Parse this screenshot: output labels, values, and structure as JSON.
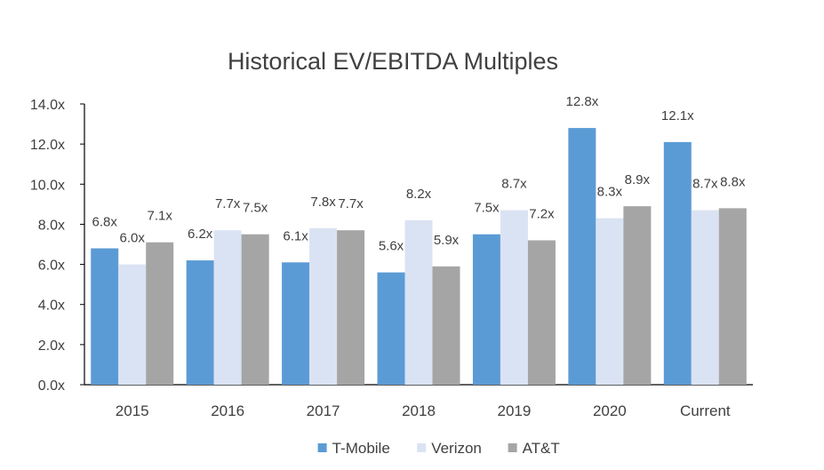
{
  "chart_data": {
    "type": "bar",
    "title": "Historical EV/EBITDA Multiples",
    "xlabel": "",
    "ylabel": "",
    "categories": [
      "2015",
      "2016",
      "2017",
      "2018",
      "2019",
      "2020",
      "Current"
    ],
    "ylim": [
      0,
      14
    ],
    "yticks": [
      "0.0x",
      "2.0x",
      "4.0x",
      "6.0x",
      "8.0x",
      "10.0x",
      "12.0x",
      "14.0x"
    ],
    "ytick_values": [
      0,
      2,
      4,
      6,
      8,
      10,
      12,
      14
    ],
    "grid": false,
    "legend_position": "bottom",
    "series": [
      {
        "name": "T-Mobile",
        "color": "#5b9bd5",
        "values": [
          6.8,
          6.2,
          6.1,
          5.6,
          7.5,
          12.8,
          12.1
        ],
        "labels": [
          "6.8x",
          "6.2x",
          "6.1x",
          "5.6x",
          "7.5x",
          "12.8x",
          "12.1x"
        ]
      },
      {
        "name": "Verizon",
        "color": "#dae3f3",
        "values": [
          6.0,
          7.7,
          7.8,
          8.2,
          8.7,
          8.3,
          8.7
        ],
        "labels": [
          "6.0x",
          "7.7x",
          "7.8x",
          "8.2x",
          "8.7x",
          "8.3x",
          "8.7x"
        ]
      },
      {
        "name": "AT&T",
        "color": "#a5a5a5",
        "values": [
          7.1,
          7.5,
          7.7,
          5.9,
          7.2,
          8.9,
          8.8
        ],
        "labels": [
          "7.1x",
          "7.5x",
          "7.7x",
          "5.9x",
          "7.2x",
          "8.9x",
          "8.8x"
        ]
      }
    ]
  }
}
